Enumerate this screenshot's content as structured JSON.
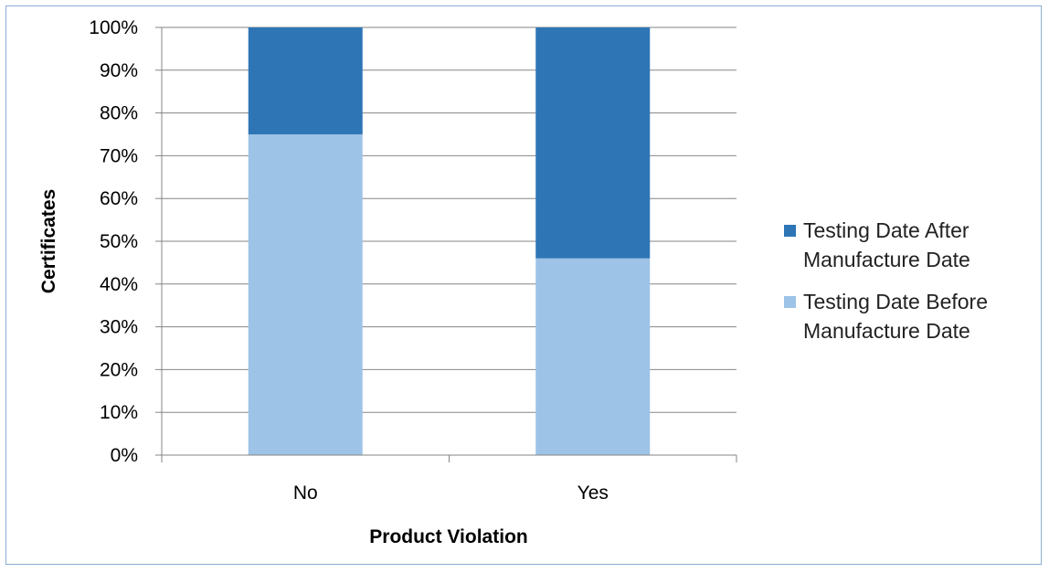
{
  "chart_data": {
    "type": "bar",
    "stacked": true,
    "percent_stacked": true,
    "categories": [
      "No",
      "Yes"
    ],
    "series": [
      {
        "name": "Testing Date Before\nManufacture Date",
        "values": [
          75,
          46
        ],
        "color": "#9dc3e6"
      },
      {
        "name": "Testing Date After\nManufacture Date",
        "values": [
          25,
          54
        ],
        "color": "#2e75b6"
      }
    ],
    "xlabel": "Product Violation",
    "ylabel": "Certificates",
    "ylim": [
      0,
      100
    ],
    "yticks": [
      "0%",
      "10%",
      "20%",
      "30%",
      "40%",
      "50%",
      "60%",
      "70%",
      "80%",
      "90%",
      "100%"
    ],
    "grid": true,
    "legend_position": "right",
    "legend_order": [
      1,
      0
    ]
  }
}
